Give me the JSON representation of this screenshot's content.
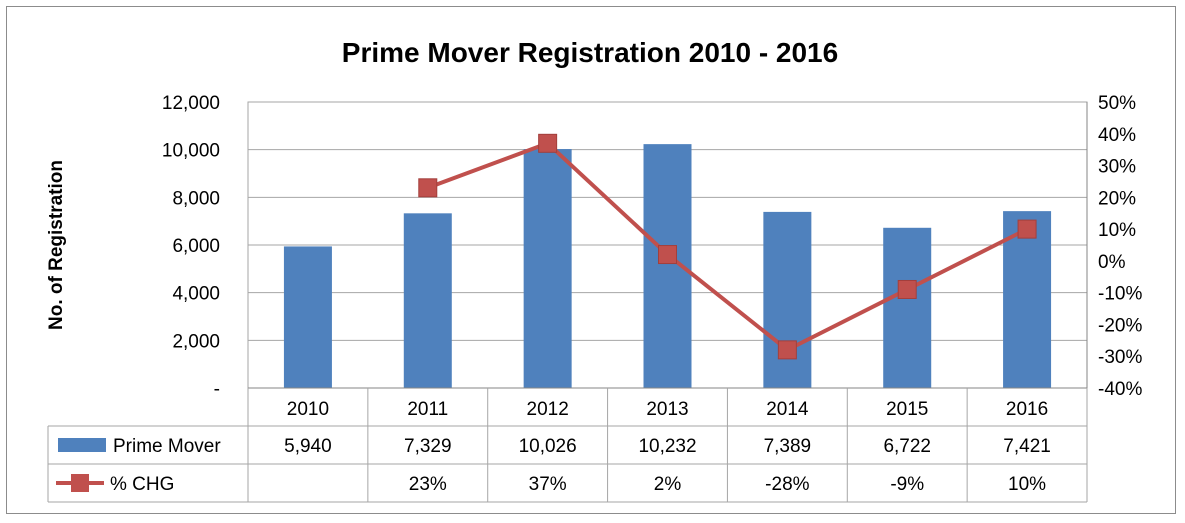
{
  "chart_data": {
    "type": "bar",
    "title": "Prime Mover Registration 2010 - 2016",
    "ylabel": "No. of Registration",
    "categories": [
      "2010",
      "2011",
      "2012",
      "2013",
      "2014",
      "2015",
      "2016"
    ],
    "ylim": [
      0,
      12000
    ],
    "y_ticks": [
      "-",
      "2,000",
      "4,000",
      "6,000",
      "8,000",
      "10,000",
      "12,000"
    ],
    "y2lim": [
      -40,
      50
    ],
    "y2_ticks": [
      "-40%",
      "-30%",
      "-20%",
      "-10%",
      "0%",
      "10%",
      "20%",
      "30%",
      "40%",
      "50%"
    ],
    "grid": true,
    "series": [
      {
        "name": "Prime Mover",
        "type": "bar",
        "axis": "left",
        "color": "#4f81bd",
        "values": [
          5940,
          7329,
          10026,
          10232,
          7389,
          6722,
          7421
        ],
        "table_values": [
          "5,940",
          "7,329",
          "10,026",
          "10,232",
          "7,389",
          "6,722",
          "7,421"
        ]
      },
      {
        "name": "% CHG",
        "type": "line",
        "axis": "right",
        "color": "#c0504d",
        "values": [
          null,
          23,
          37,
          2,
          -28,
          -9,
          10
        ],
        "table_values": [
          "",
          "23%",
          "37%",
          "2%",
          "-28%",
          "-9%",
          "10%"
        ]
      }
    ],
    "legend": "data-table"
  }
}
